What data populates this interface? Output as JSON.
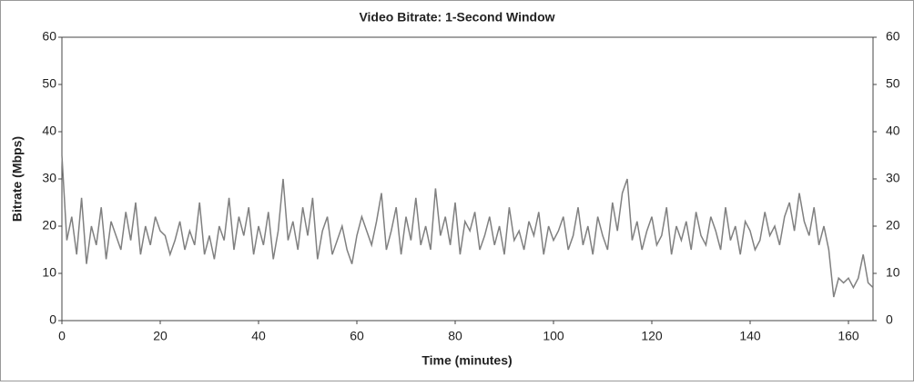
{
  "chart_data": {
    "type": "line",
    "title": "Video Bitrate: 1-Second Window",
    "x_label": "Time (minutes)",
    "y_label": "Bitrate (Mbps)",
    "x": [
      0,
      1,
      2,
      3,
      4,
      5,
      6,
      7,
      8,
      9,
      10,
      11,
      12,
      13,
      14,
      15,
      16,
      17,
      18,
      19,
      20,
      21,
      22,
      23,
      24,
      25,
      26,
      27,
      28,
      29,
      30,
      31,
      32,
      33,
      34,
      35,
      36,
      37,
      38,
      39,
      40,
      41,
      42,
      43,
      44,
      45,
      46,
      47,
      48,
      49,
      50,
      51,
      52,
      53,
      54,
      55,
      56,
      57,
      58,
      59,
      60,
      61,
      62,
      63,
      64,
      65,
      66,
      67,
      68,
      69,
      70,
      71,
      72,
      73,
      74,
      75,
      76,
      77,
      78,
      79,
      80,
      81,
      82,
      83,
      84,
      85,
      86,
      87,
      88,
      89,
      90,
      91,
      92,
      93,
      94,
      95,
      96,
      97,
      98,
      99,
      100,
      101,
      102,
      103,
      104,
      105,
      106,
      107,
      108,
      109,
      110,
      111,
      112,
      113,
      114,
      115,
      116,
      117,
      118,
      119,
      120,
      121,
      122,
      123,
      124,
      125,
      126,
      127,
      128,
      129,
      130,
      131,
      132,
      133,
      134,
      135,
      136,
      137,
      138,
      139,
      140,
      141,
      142,
      143,
      144,
      145,
      146,
      147,
      148,
      149,
      150,
      151,
      152,
      153,
      154,
      155,
      156,
      157,
      158,
      159,
      160,
      161,
      162,
      163,
      164,
      165
    ],
    "series": [
      {
        "name": "Bitrate",
        "color": "#808080",
        "values": [
          35,
          17,
          22,
          14,
          26,
          12,
          20,
          16,
          24,
          13,
          21,
          18,
          15,
          23,
          17,
          25,
          14,
          20,
          16,
          22,
          19,
          18,
          14,
          17,
          21,
          15,
          19,
          16,
          25,
          14,
          18,
          13,
          20,
          17,
          26,
          15,
          22,
          18,
          24,
          14,
          20,
          16,
          23,
          13,
          19,
          30,
          17,
          21,
          15,
          24,
          18,
          26,
          13,
          19,
          22,
          14,
          17,
          20,
          15,
          12,
          18,
          22,
          19,
          16,
          21,
          27,
          15,
          19,
          24,
          14,
          22,
          17,
          26,
          16,
          20,
          15,
          28,
          18,
          22,
          16,
          25,
          14,
          21,
          19,
          23,
          15,
          18,
          22,
          16,
          20,
          14,
          24,
          17,
          19,
          15,
          21,
          18,
          23,
          14,
          20,
          17,
          19,
          22,
          15,
          18,
          24,
          16,
          20,
          14,
          22,
          18,
          15,
          25,
          19,
          27,
          30,
          17,
          21,
          15,
          19,
          22,
          16,
          18,
          24,
          14,
          20,
          17,
          21,
          15,
          23,
          18,
          16,
          22,
          19,
          15,
          24,
          17,
          20,
          14,
          21,
          19,
          15,
          17,
          23,
          18,
          20,
          16,
          22,
          25,
          19,
          27,
          21,
          18,
          24,
          16,
          20,
          15,
          5,
          9,
          8,
          9,
          7,
          9,
          14,
          8,
          7
        ]
      }
    ],
    "xlim": [
      0,
      165
    ],
    "xticks": [
      0,
      20,
      40,
      60,
      80,
      100,
      120,
      140,
      160
    ],
    "ylim": [
      0,
      60
    ],
    "yticks": [
      0,
      10,
      20,
      30,
      40,
      50,
      60
    ],
    "right_axis": true
  }
}
